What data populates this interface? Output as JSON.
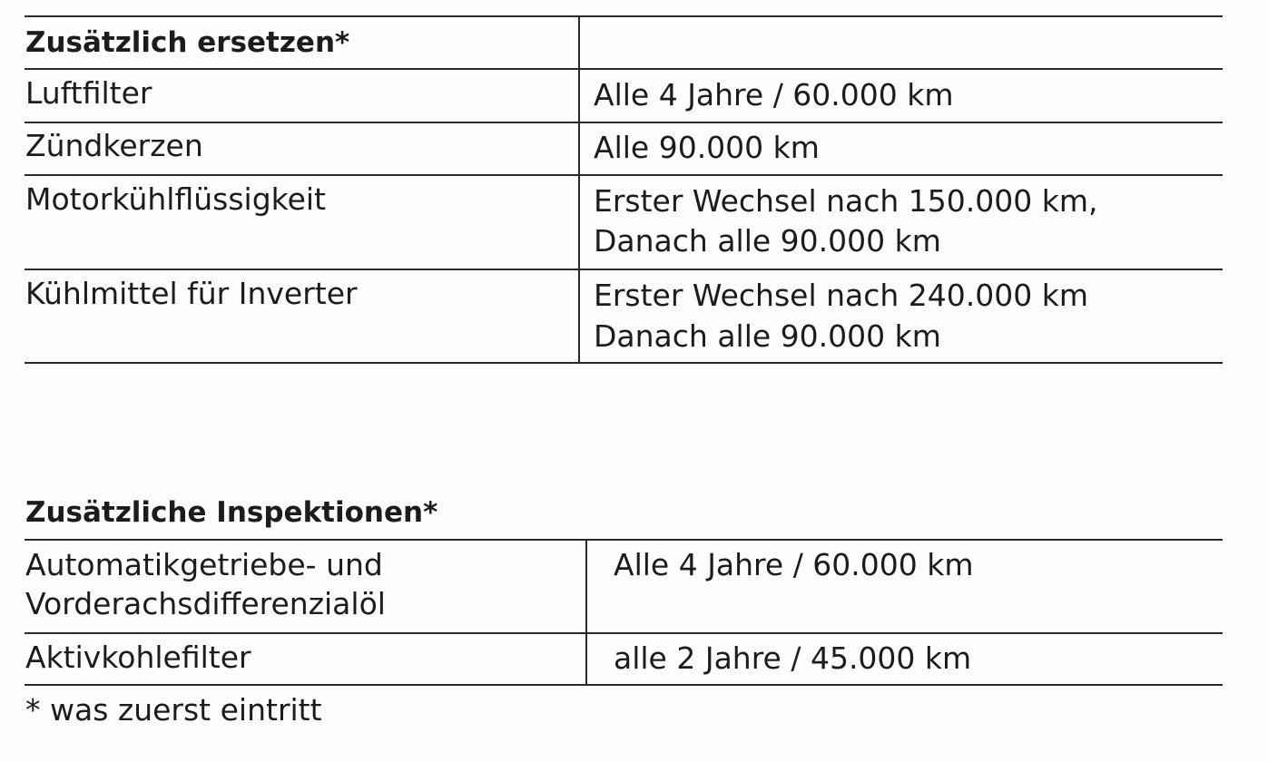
{
  "table1": {
    "heading": "Zusätzlich ersetzen*",
    "rows": [
      {
        "item": "Luftfilter",
        "interval": [
          "Alle 4 Jahre / 60.000 km"
        ]
      },
      {
        "item": "Zündkerzen",
        "interval": [
          "Alle 90.000 km"
        ]
      },
      {
        "item": "Motorkühlflüssigkeit",
        "interval": [
          "Erster Wechsel nach 150.000 km,",
          "Danach alle 90.000 km"
        ]
      },
      {
        "item": "Kühlmittel für Inverter",
        "interval": [
          "Erster Wechsel nach 240.000 km",
          "Danach alle 90.000 km"
        ]
      }
    ]
  },
  "table2": {
    "heading": "Zusätzliche Inspektionen*",
    "rows": [
      {
        "item": [
          "Automatikgetriebe- und",
          "Vorderachsdifferenzialöl"
        ],
        "interval": "Alle 4 Jahre / 60.000 km"
      },
      {
        "item": [
          "Aktivkohlefilter"
        ],
        "interval": "alle 2 Jahre / 45.000 km"
      }
    ]
  },
  "footnote": "* was zuerst eintritt"
}
